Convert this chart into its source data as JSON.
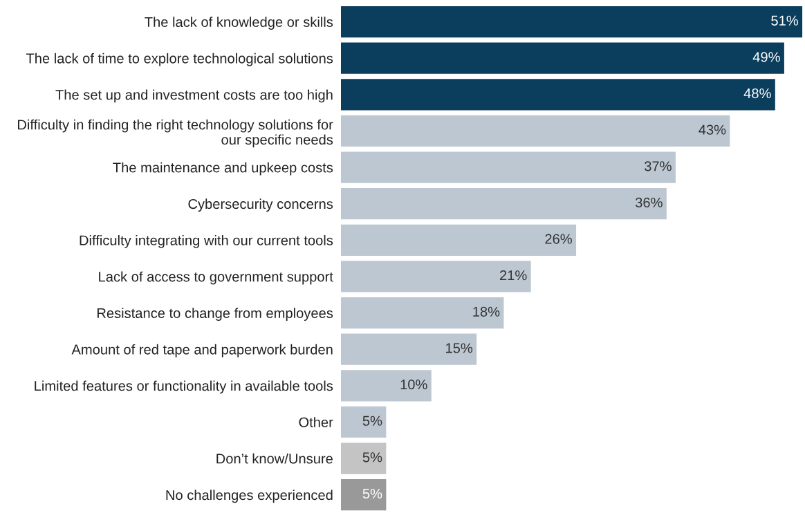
{
  "chart_data": {
    "type": "bar",
    "orientation": "horizontal",
    "categories": [
      "The lack of knowledge or skills",
      "The lack of time to explore technological solutions",
      "The set up and investment costs are too high",
      "Difficulty in finding the right technology solutions for\nour specific needs",
      "The maintenance and upkeep costs",
      "Cybersecurity concerns",
      "Difficulty integrating with our current tools",
      "Lack of access to government support",
      "Resistance to change from employees",
      "Amount of red tape and paperwork burden",
      "Limited features or functionality in available tools",
      "Other",
      "Don’t know/Unsure",
      "No challenges experienced"
    ],
    "values": [
      51,
      49,
      48,
      43,
      37,
      36,
      26,
      21,
      18,
      15,
      10,
      5,
      5,
      5
    ],
    "value_labels": [
      "51%",
      "49%",
      "48%",
      "43%",
      "37%",
      "36%",
      "26%",
      "21%",
      "18%",
      "15%",
      "10%",
      "5%",
      "5%",
      "5%"
    ],
    "colors": [
      "#0b3d5c",
      "#0b3d5c",
      "#0b3d5c",
      "#bdc7d1",
      "#bdc7d1",
      "#bdc7d1",
      "#bdc7d1",
      "#bdc7d1",
      "#bdc7d1",
      "#bdc7d1",
      "#bdc7d1",
      "#bdc7d1",
      "#c4c4c4",
      "#999999"
    ],
    "xlim": [
      0,
      51.3
    ],
    "tick_labels": "y",
    "grid": false,
    "legend": false
  }
}
